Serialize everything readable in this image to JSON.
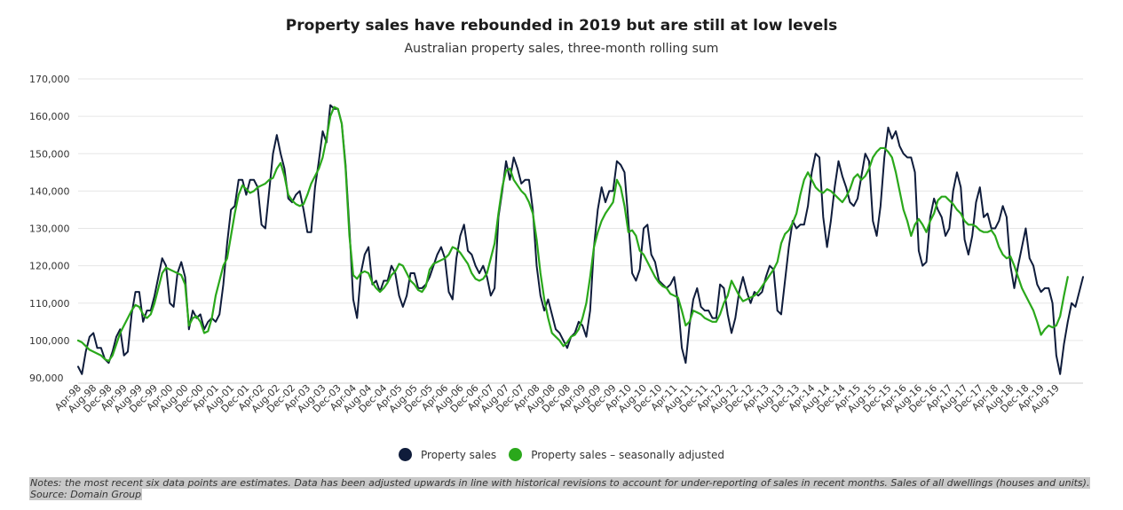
{
  "chart_data": {
    "type": "line",
    "title": "Property sales have rebounded in 2019 but are still at low levels",
    "subtitle": "Australian property sales, three-month rolling sum",
    "xlabel": "",
    "ylabel": "",
    "ylim": [
      90000,
      170000
    ],
    "yticks": [
      90000,
      100000,
      110000,
      120000,
      130000,
      140000,
      150000,
      160000,
      170000
    ],
    "ytick_labels": [
      "90,000",
      "100,000",
      "110,000",
      "120,000",
      "130,000",
      "140,000",
      "150,000",
      "160,000",
      "170,000"
    ],
    "grid": true,
    "legend_position": "bottom-center",
    "x_start": "Apr-98",
    "x_tick_labels": [
      "Apr-98",
      "Aug-98",
      "Dec-98",
      "Apr-99",
      "Aug-99",
      "Dec-99",
      "Apr-00",
      "Aug-00",
      "Dec-00",
      "Apr-01",
      "Aug-01",
      "Dec-01",
      "Apr-02",
      "Aug-02",
      "Dec-02",
      "Apr-03",
      "Aug-03",
      "Dec-03",
      "Apr-04",
      "Aug-04",
      "Dec-04",
      "Apr-05",
      "Aug-05",
      "Dec-05",
      "Apr-06",
      "Aug-06",
      "Dec-06",
      "Apr-07",
      "Aug-07",
      "Dec-07",
      "Apr-08",
      "Aug-08",
      "Dec-08",
      "Apr-09",
      "Aug-09",
      "Dec-09",
      "Apr-10",
      "Aug-10",
      "Dec-10",
      "Apr-11",
      "Aug-11",
      "Dec-11",
      "Apr-12",
      "Aug-12",
      "Dec-12",
      "Apr-13",
      "Aug-13",
      "Dec-13",
      "Apr-14",
      "Aug-14",
      "Dec-14",
      "Apr-15",
      "Aug-15",
      "Dec-15",
      "Apr-16",
      "Aug-16",
      "Dec-16",
      "Apr-17",
      "Aug-17",
      "Dec-17",
      "Apr-18",
      "Aug-18",
      "Dec-18",
      "Apr-19",
      "Aug-19"
    ],
    "series": [
      {
        "name": "Property sales",
        "color": "#0f1c3b",
        "values": [
          93000,
          91000,
          97000,
          101000,
          102000,
          98000,
          98000,
          95000,
          94000,
          97000,
          101000,
          103000,
          96000,
          97000,
          107000,
          113000,
          113000,
          105000,
          108000,
          108000,
          112000,
          117000,
          122000,
          120000,
          110000,
          109000,
          118000,
          121000,
          117000,
          103000,
          108000,
          106000,
          107000,
          103000,
          105000,
          106000,
          105000,
          107000,
          115000,
          126000,
          135000,
          136000,
          143000,
          143000,
          139000,
          143000,
          143000,
          141000,
          131000,
          130000,
          140000,
          150000,
          155000,
          150000,
          146000,
          138000,
          137000,
          139000,
          140000,
          135000,
          129000,
          129000,
          141000,
          148000,
          156000,
          153000,
          163000,
          162000,
          162000,
          158000,
          147000,
          130000,
          111000,
          106000,
          118000,
          123000,
          125000,
          115000,
          116000,
          113000,
          116000,
          116000,
          120000,
          118000,
          112000,
          109000,
          112000,
          118000,
          118000,
          114000,
          114000,
          115000,
          117000,
          120000,
          123000,
          125000,
          122000,
          113000,
          111000,
          122000,
          128000,
          131000,
          124000,
          123000,
          120000,
          118000,
          120000,
          117000,
          112000,
          114000,
          133000,
          140000,
          148000,
          143000,
          149000,
          146000,
          142000,
          143000,
          143000,
          135000,
          120000,
          112000,
          108000,
          111000,
          107000,
          103000,
          102000,
          100000,
          98000,
          101000,
          102000,
          105000,
          104000,
          101000,
          108000,
          125000,
          135000,
          141000,
          137000,
          140000,
          140000,
          148000,
          147000,
          145000,
          132000,
          118000,
          116000,
          119000,
          130000,
          131000,
          123000,
          121000,
          116000,
          115000,
          114000,
          115000,
          117000,
          110000,
          98000,
          94000,
          104000,
          111000,
          114000,
          109000,
          108000,
          108000,
          106000,
          106000,
          115000,
          114000,
          107000,
          102000,
          106000,
          113000,
          117000,
          113000,
          110000,
          113000,
          112000,
          113000,
          117000,
          120000,
          119000,
          108000,
          107000,
          116000,
          125000,
          132000,
          130000,
          131000,
          131000,
          136000,
          145000,
          150000,
          149000,
          133000,
          125000,
          132000,
          141000,
          148000,
          144000,
          141000,
          137000,
          136000,
          138000,
          144000,
          150000,
          148000,
          132000,
          128000,
          136000,
          149000,
          157000,
          154000,
          156000,
          152000,
          150000,
          149000,
          149000,
          145000,
          124000,
          120000,
          121000,
          133000,
          138000,
          135000,
          133000,
          128000,
          130000,
          140000,
          145000,
          141000,
          127000,
          123000,
          128000,
          137000,
          141000,
          133000,
          134000,
          130000,
          130000,
          132000,
          136000,
          133000,
          120000,
          114000,
          120000,
          125000,
          130000,
          122000,
          120000,
          115000,
          113000,
          114000,
          114000,
          110000,
          96000,
          91000,
          99000,
          105000,
          110000,
          109000,
          113000,
          117000
        ]
      },
      {
        "name": "Property sales – seasonally adjusted",
        "color": "#2aa81b",
        "values": [
          100000,
          99500,
          98500,
          97500,
          97000,
          96500,
          96000,
          95000,
          94500,
          96000,
          99000,
          102000,
          104000,
          106000,
          108000,
          109500,
          109000,
          107000,
          106000,
          107000,
          110000,
          114000,
          118000,
          119500,
          119000,
          118500,
          118000,
          117500,
          115000,
          104000,
          106000,
          106500,
          105000,
          102000,
          102500,
          106000,
          112000,
          116000,
          120000,
          122000,
          128000,
          134000,
          139000,
          141500,
          140500,
          139500,
          140000,
          141000,
          141500,
          142000,
          143000,
          143500,
          146000,
          147500,
          144000,
          139000,
          137500,
          136500,
          136000,
          136500,
          139000,
          142000,
          144000,
          146000,
          149000,
          154000,
          160000,
          162500,
          162000,
          158000,
          146000,
          128000,
          117500,
          116500,
          118000,
          118500,
          118000,
          115500,
          114000,
          113000,
          114000,
          115500,
          117500,
          118500,
          120500,
          120000,
          118000,
          116000,
          115000,
          113500,
          113000,
          114500,
          119000,
          120500,
          121000,
          121500,
          122000,
          123000,
          125000,
          124500,
          123500,
          122000,
          120500,
          118000,
          116500,
          116000,
          116500,
          118000,
          122000,
          126000,
          134000,
          141000,
          145500,
          146000,
          143000,
          141500,
          140000,
          139000,
          137000,
          134000,
          127000,
          118000,
          111000,
          106000,
          102000,
          101000,
          100000,
          98500,
          99500,
          101000,
          101500,
          103000,
          106000,
          110000,
          117000,
          125000,
          129000,
          132000,
          134000,
          135500,
          137000,
          143000,
          141000,
          136000,
          129000,
          129500,
          128000,
          124000,
          123000,
          121000,
          119000,
          117000,
          115500,
          114500,
          114000,
          112500,
          112000,
          111500,
          108000,
          104000,
          105000,
          108000,
          107500,
          107000,
          106000,
          105500,
          105000,
          105000,
          107000,
          110000,
          112000,
          116000,
          114000,
          112000,
          110500,
          111000,
          111500,
          112000,
          113000,
          114500,
          116000,
          117500,
          119000,
          121000,
          126000,
          128500,
          129500,
          131500,
          134000,
          139000,
          143000,
          145000,
          143000,
          141000,
          140000,
          139500,
          140500,
          140000,
          139000,
          138000,
          137000,
          138500,
          140500,
          143500,
          144500,
          143000,
          144000,
          146000,
          149000,
          150500,
          151500,
          151500,
          150500,
          149000,
          145000,
          140000,
          135000,
          132000,
          128000,
          131000,
          132500,
          131000,
          129000,
          132000,
          134000,
          137500,
          138500,
          138500,
          137500,
          136500,
          135000,
          134000,
          132000,
          131000,
          131000,
          130500,
          129500,
          129000,
          129000,
          129500,
          128000,
          125000,
          123000,
          122000,
          122500,
          120000,
          117000,
          114000,
          112000,
          110000,
          108000,
          105000,
          101500,
          103000,
          104000,
          103500,
          104000,
          106500,
          112000,
          117000
        ]
      }
    ]
  },
  "legend": {
    "items": [
      {
        "label": "Property sales",
        "color": "#0f1c3b"
      },
      {
        "label": "Property sales – seasonally adjusted",
        "color": "#2aa81b"
      }
    ]
  },
  "notes": {
    "line1": "Notes: the most recent six data points are estimates. Data has been adjusted upwards in line with historical revisions to account for under-reporting of sales in recent months. Sales of all dwellings (houses and units).",
    "line2": "Source: Domain Group"
  }
}
